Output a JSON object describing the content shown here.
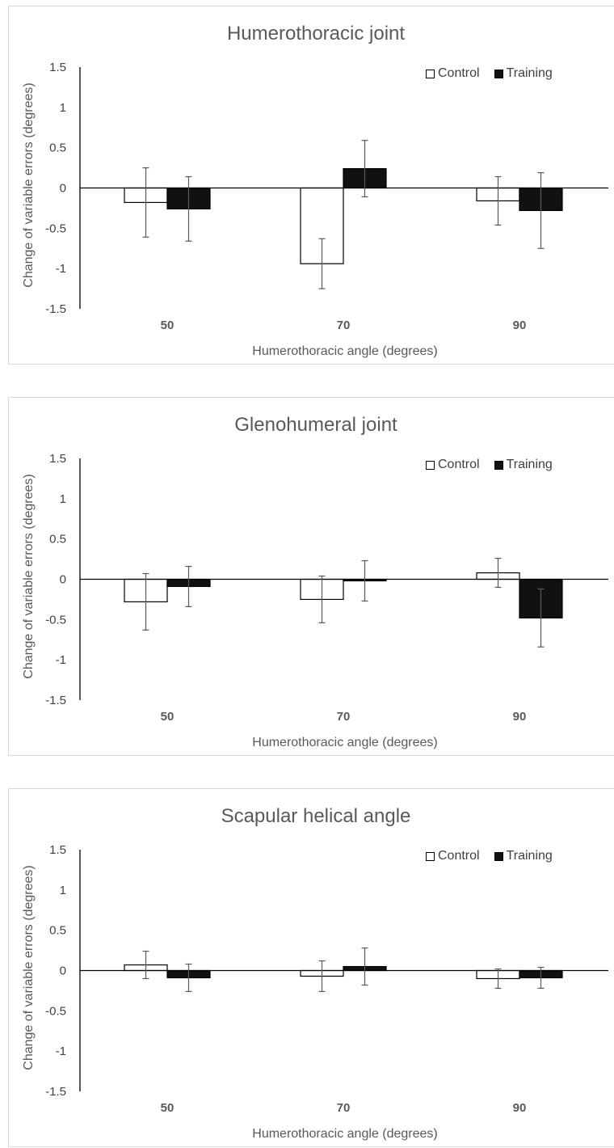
{
  "chart_data": [
    {
      "type": "bar",
      "title": "Humerothoracic joint",
      "xlabel": "Humerothoracic angle (degrees)",
      "ylabel": "Change of variable errors (degrees)",
      "ylim": [
        -1.5,
        1.5
      ],
      "yticks": [
        "1.5",
        "1",
        "0.5",
        "0",
        "-0.5",
        "-1",
        "-1.5"
      ],
      "categories": [
        "50",
        "70",
        "90"
      ],
      "legend_position": "top-right",
      "series": [
        {
          "name": "Control",
          "color": "#ffffff",
          "values": [
            -0.18,
            -0.94,
            -0.16
          ],
          "errors": [
            0.43,
            0.31,
            0.3
          ]
        },
        {
          "name": "Training",
          "color": "#111111",
          "values": [
            -0.26,
            0.24,
            -0.28
          ],
          "errors": [
            0.4,
            0.35,
            0.47
          ]
        }
      ]
    },
    {
      "type": "bar",
      "title": "Glenohumeral joint",
      "xlabel": "Humerothoracic angle (degrees)",
      "ylabel": "Change of variable errors (degrees)",
      "ylim": [
        -1.5,
        1.5
      ],
      "yticks": [
        "1.5",
        "1",
        "0.5",
        "0",
        "-0.5",
        "-1",
        "-1.5"
      ],
      "categories": [
        "50",
        "70",
        "90"
      ],
      "legend_position": "top-right",
      "series": [
        {
          "name": "Control",
          "color": "#ffffff",
          "values": [
            -0.28,
            -0.25,
            0.08
          ],
          "errors": [
            0.35,
            0.29,
            0.18
          ]
        },
        {
          "name": "Training",
          "color": "#111111",
          "values": [
            -0.09,
            -0.02,
            -0.48
          ],
          "errors": [
            0.25,
            0.25,
            0.36
          ]
        }
      ]
    },
    {
      "type": "bar",
      "title": "Scapular helical angle",
      "xlabel": "Humerothoracic angle (degrees)",
      "ylabel": "Change of variable errors (degrees)",
      "ylim": [
        -1.5,
        1.5
      ],
      "yticks": [
        "1.5",
        "1",
        "0.5",
        "0",
        "-0.5",
        "-1",
        "-1.5"
      ],
      "categories": [
        "50",
        "70",
        "90"
      ],
      "legend_position": "top-right",
      "series": [
        {
          "name": "Control",
          "color": "#ffffff",
          "values": [
            0.07,
            -0.07,
            -0.1
          ],
          "errors": [
            0.17,
            0.19,
            0.12
          ]
        },
        {
          "name": "Training",
          "color": "#111111",
          "values": [
            -0.09,
            0.05,
            -0.09
          ],
          "errors": [
            0.17,
            0.23,
            0.13
          ]
        }
      ]
    }
  ]
}
